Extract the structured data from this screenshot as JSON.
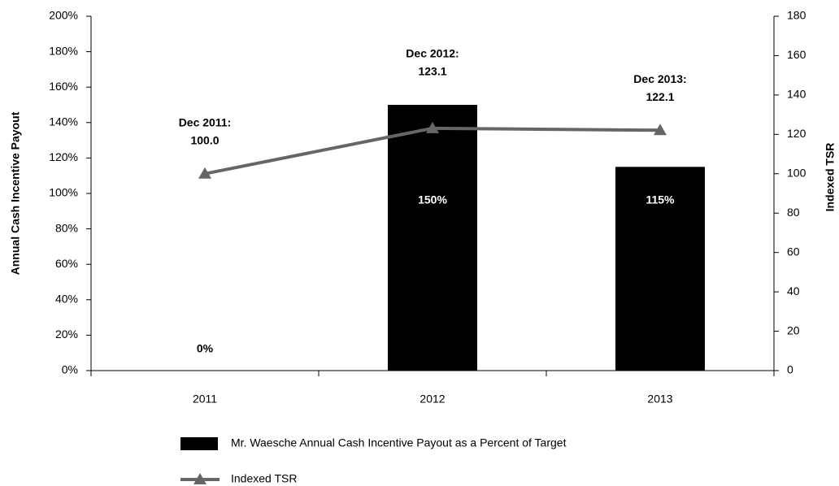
{
  "chart_data": {
    "type": "bar",
    "categories": [
      "2011",
      "2012",
      "2013"
    ],
    "ylabel": "Annual Cash Incentive Payout",
    "y2label": "Indexed TSR",
    "ylim": [
      0,
      200
    ],
    "yticks": [
      {
        "value": 0,
        "label": "0%"
      },
      {
        "value": 20,
        "label": "20%"
      },
      {
        "value": 40,
        "label": "40%"
      },
      {
        "value": 60,
        "label": "60%"
      },
      {
        "value": 80,
        "label": "80%"
      },
      {
        "value": 100,
        "label": "100%"
      },
      {
        "value": 120,
        "label": "120%"
      },
      {
        "value": 140,
        "label": "140%"
      },
      {
        "value": 160,
        "label": "160%"
      },
      {
        "value": 180,
        "label": "180%"
      },
      {
        "value": 200,
        "label": "200%"
      }
    ],
    "y2lim": [
      0,
      180
    ],
    "y2ticks": [
      0,
      20,
      40,
      60,
      80,
      100,
      120,
      140,
      160,
      180
    ],
    "series": [
      {
        "name": "Mr. Waesche Annual Cash Incentive Payout as a Percent of Target",
        "type": "bar",
        "color": "#000000",
        "values": [
          0,
          150,
          115
        ],
        "value_labels": [
          "0%",
          "150%",
          "115%"
        ]
      },
      {
        "name": "Indexed TSR",
        "type": "line",
        "axis": "y2",
        "color": "#666666",
        "values": [
          100.0,
          123.1,
          122.1
        ],
        "value_labels": [
          "100.0",
          "123.1",
          "122.1"
        ],
        "point_labels": [
          "Dec 2011:",
          "Dec 2012:",
          "Dec 2013:"
        ]
      }
    ]
  }
}
